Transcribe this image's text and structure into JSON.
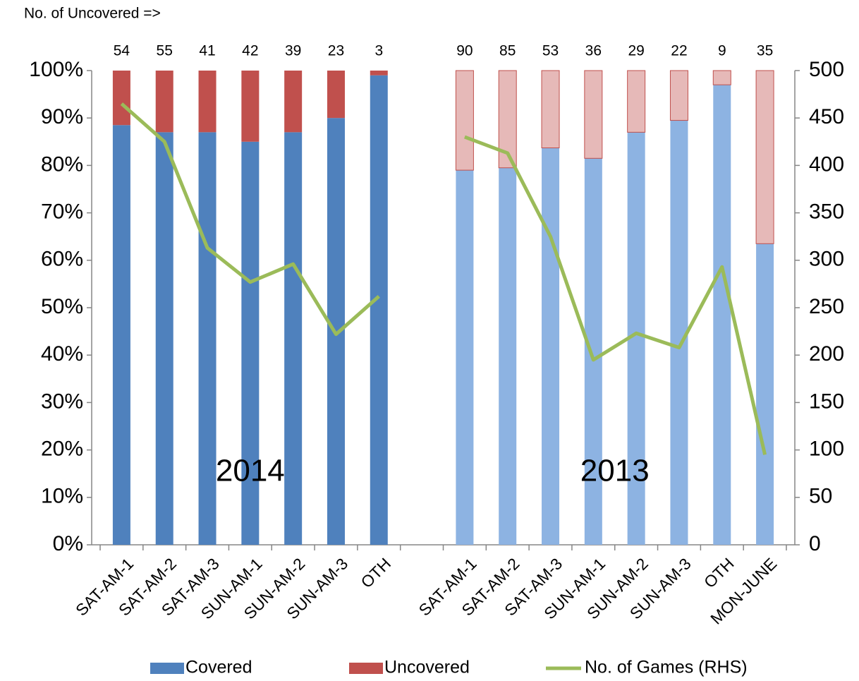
{
  "chart_data": {
    "type": "stacked_bar_line",
    "annotation": "No. of Uncovered =>",
    "group_labels": [
      "2014",
      "2013"
    ],
    "categories": [
      "SAT-AM-1",
      "SAT-AM-2",
      "SAT-AM-3",
      "SUN-AM-1",
      "SUN-AM-2",
      "SUN-AM-3",
      "OTH",
      null,
      "SAT-AM-1",
      "SAT-AM-2",
      "SAT-AM-3",
      "SUN-AM-1",
      "SUN-AM-2",
      "SUN-AM-3",
      "OTH",
      "MON-JUNE"
    ],
    "top_labels": [
      54,
      55,
      41,
      42,
      39,
      23,
      3,
      null,
      90,
      85,
      53,
      36,
      29,
      22,
      9,
      35
    ],
    "series": [
      {
        "name": "Covered",
        "color": "#4f81bd",
        "colors": [
          "#4f81bd",
          "#4f81bd",
          "#4f81bd",
          "#4f81bd",
          "#4f81bd",
          "#4f81bd",
          "#4f81bd",
          null,
          "#8db3e2",
          "#8db3e2",
          "#8db3e2",
          "#8db3e2",
          "#8db3e2",
          "#8db3e2",
          "#8db3e2",
          "#8db3e2"
        ],
        "values": [
          88.5,
          87,
          87,
          85,
          87,
          90,
          99,
          null,
          79,
          79.5,
          83.7,
          81.5,
          87,
          89.5,
          97,
          63.5
        ]
      },
      {
        "name": "Uncovered",
        "color": "#c0504d",
        "colors": [
          "#c0504d",
          "#c0504d",
          "#c0504d",
          "#c0504d",
          "#c0504d",
          "#c0504d",
          "#c0504d",
          null,
          "#e6b9b8",
          "#e6b9b8",
          "#e6b9b8",
          "#e6b9b8",
          "#e6b9b8",
          "#e6b9b8",
          "#e6b9b8",
          "#e6b9b8"
        ],
        "values": [
          11.5,
          13,
          13,
          15,
          13,
          10,
          1,
          null,
          21,
          20.5,
          16.3,
          18.5,
          13,
          10.5,
          3,
          36.5
        ]
      },
      {
        "name": "No. of Games (RHS)",
        "color": "#9bbb59",
        "axis": "y2",
        "values": [
          465,
          425,
          313,
          277,
          296,
          222,
          262,
          null,
          430,
          413,
          325,
          195,
          223,
          208,
          293,
          95
        ]
      }
    ],
    "ylim": [
      0,
      100
    ],
    "yticks": [
      {
        "value": 0,
        "label": "0%"
      },
      {
        "value": 10,
        "label": "10%"
      },
      {
        "value": 20,
        "label": "20%"
      },
      {
        "value": 30,
        "label": "30%"
      },
      {
        "value": 40,
        "label": "40%"
      },
      {
        "value": 50,
        "label": "50%"
      },
      {
        "value": 60,
        "label": "60%"
      },
      {
        "value": 70,
        "label": "70%"
      },
      {
        "value": 80,
        "label": "80%"
      },
      {
        "value": 90,
        "label": "90%"
      },
      {
        "value": 100,
        "label": "100%"
      }
    ],
    "y2lim": [
      0,
      500
    ],
    "y2ticks": [
      0,
      50,
      100,
      150,
      200,
      250,
      300,
      350,
      400,
      450,
      500
    ],
    "grid": false,
    "legend": "bottom"
  }
}
